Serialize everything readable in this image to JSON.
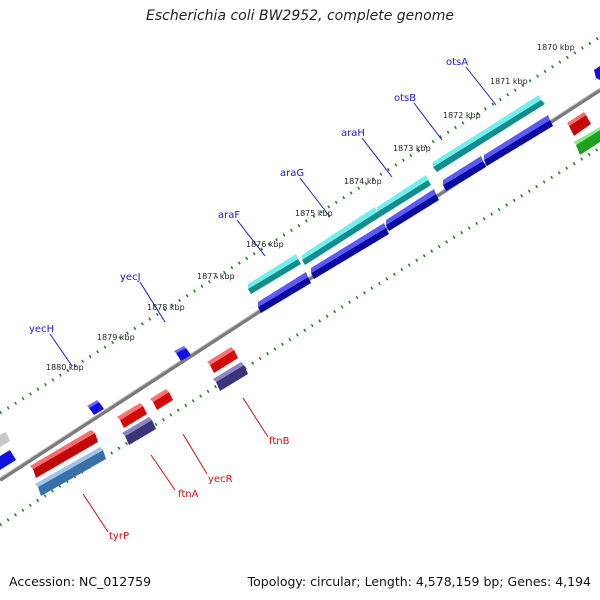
{
  "title": "Escherichia coli BW2952, complete genome",
  "footer": {
    "accession": "Accession: NC_012759",
    "topology": "Topology: circular; Length: 4,578,159 bp; Genes: 4,194"
  },
  "kbp_labels": [
    "1870 kbp",
    "1871 kbp",
    "1872 kbp",
    "1873 kbp",
    "1874 kbp",
    "1875 kbp",
    "1876 kbp",
    "1877 kbp",
    "1878 kbp",
    "1879 kbp",
    "1880 kbp"
  ],
  "genes_top": [
    "otsA",
    "otsB",
    "araH",
    "araG",
    "araF",
    "yecJ",
    "yecH"
  ],
  "genes_bottom": [
    "ftnB",
    "yecR",
    "ftnA",
    "tyrP"
  ],
  "colors": {
    "cyan_gene": "#1fc4c4",
    "blue_gene": "#1010e0",
    "red_gene": "#e81010",
    "purple_gene": "#4a4090",
    "steel_gene": "#4a84c0",
    "green_gene": "#30c030",
    "backbone": "#808080",
    "ticks": "#228822",
    "label_blue": "#1a1ad6",
    "label_red": "#d01010"
  }
}
